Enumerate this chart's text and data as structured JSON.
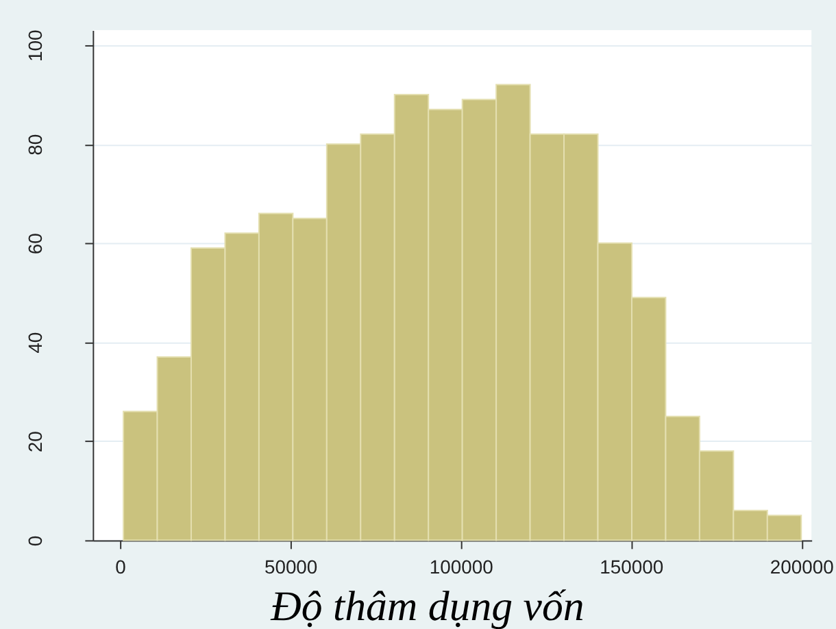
{
  "chart_data": {
    "type": "histogram",
    "xlabel": "Độ thâm dụng vốn",
    "bins": [
      1000,
      10950,
      20900,
      30850,
      40800,
      50750,
      60700,
      70650,
      80600,
      90550,
      100500,
      110450,
      120400,
      130350,
      140300,
      150250,
      160200,
      170150,
      180100,
      190050,
      200000
    ],
    "values": [
      26,
      37,
      59,
      62,
      66,
      65,
      80,
      82,
      90,
      87,
      89,
      92,
      82,
      82,
      60,
      49,
      25,
      18,
      6,
      5
    ],
    "color": "#cac27e",
    "xlim": [
      -8000,
      203000
    ],
    "xticks": [
      0,
      50000,
      100000,
      150000,
      200000
    ],
    "ylim": [
      0,
      103
    ],
    "yticks": [
      0,
      20,
      40,
      60,
      80,
      100
    ],
    "grid": "y"
  }
}
